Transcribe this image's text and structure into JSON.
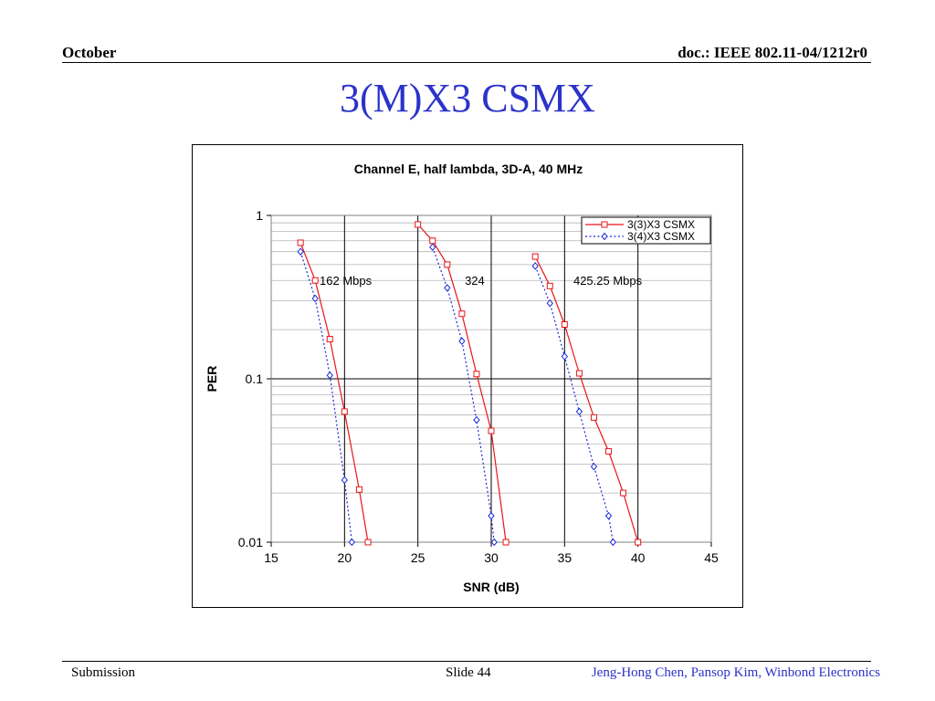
{
  "header": {
    "left": "October",
    "right": "doc.: IEEE 802.11-04/1212r0"
  },
  "slide_title": "3(M)X3 CSMX",
  "footer": {
    "left": "Submission",
    "middle": "Slide 44",
    "right": "Jeng-Hong Chen, Pansop Kim, Winbond Electronics"
  },
  "colors": {
    "title_blue": "#2b33c9",
    "series_red": "#e8161b",
    "series_blue": "#1b2bd6"
  },
  "chart_data": {
    "type": "line",
    "title": "Channel E, half lambda, 3D-A, 40 MHz",
    "xlabel": "SNR (dB)",
    "ylabel": "PER",
    "xlim": [
      15,
      45
    ],
    "ylim": [
      0.01,
      1
    ],
    "yscale": "log",
    "xticks": [
      "15",
      "20",
      "25",
      "30",
      "35",
      "40",
      "45"
    ],
    "yticks": [
      "0.01",
      "0.1",
      "1"
    ],
    "grid": true,
    "legend_position": "top-right",
    "annotations": [
      {
        "text": "162 Mbps",
        "x": 18.3,
        "y": 0.4
      },
      {
        "text": "324",
        "x": 28.2,
        "y": 0.4
      },
      {
        "text": "425.25 Mbps",
        "x": 35.6,
        "y": 0.4
      }
    ],
    "series": [
      {
        "name": "3(3)X3 CSMX",
        "color": "#e8161b",
        "marker": "square",
        "line": "solid",
        "groups": [
          {
            "x": [
              17,
              18,
              19,
              20,
              21,
              21.6
            ],
            "y": [
              0.68,
              0.4,
              0.175,
              0.063,
              0.021,
              0.01
            ]
          },
          {
            "x": [
              25,
              26,
              27,
              28,
              29,
              30,
              31
            ],
            "y": [
              0.88,
              0.7,
              0.5,
              0.25,
              0.107,
              0.048,
              0.01
            ]
          },
          {
            "x": [
              33,
              34,
              35,
              36,
              37,
              38,
              39,
              40
            ],
            "y": [
              0.56,
              0.37,
              0.215,
              0.108,
              0.058,
              0.036,
              0.02,
              0.01
            ]
          }
        ]
      },
      {
        "name": "3(4)X3 CSMX",
        "color": "#1b2bd6",
        "marker": "diamond",
        "line": "dotted",
        "groups": [
          {
            "x": [
              17,
              18,
              19,
              20,
              20.5
            ],
            "y": [
              0.6,
              0.31,
              0.105,
              0.024,
              0.01
            ]
          },
          {
            "x": [
              26,
              27,
              28,
              29,
              30,
              30.2
            ],
            "y": [
              0.64,
              0.36,
              0.17,
              0.056,
              0.0145,
              0.01
            ]
          },
          {
            "x": [
              33,
              34,
              35,
              36,
              37,
              38,
              38.3
            ],
            "y": [
              0.49,
              0.29,
              0.137,
              0.063,
              0.029,
              0.0145,
              0.01
            ]
          }
        ]
      }
    ]
  }
}
